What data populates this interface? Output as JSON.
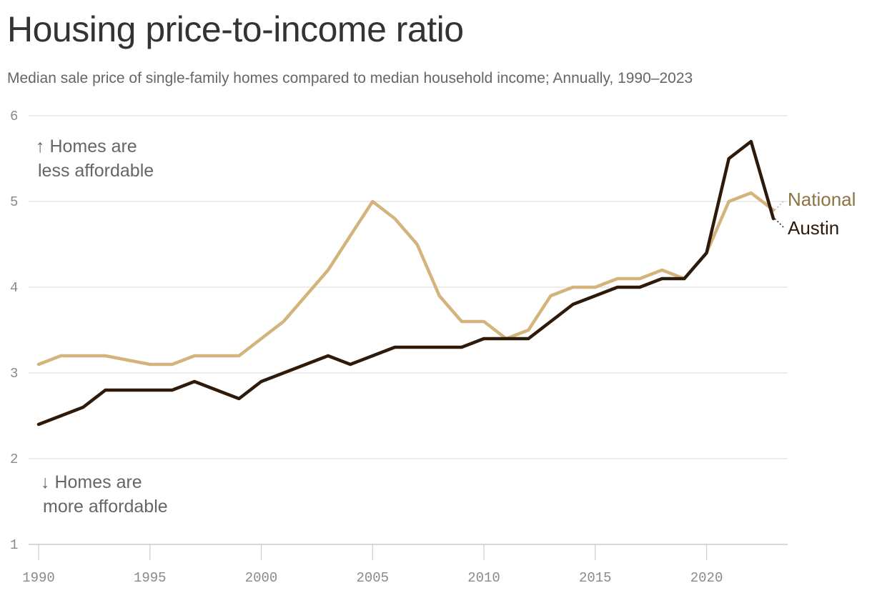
{
  "title": "Housing price-to-income ratio",
  "subtitle": "Median sale price of single-family homes compared to median household income; Annually, 1990–2023",
  "chart_data": {
    "type": "line",
    "x": [
      1990,
      1991,
      1992,
      1993,
      1994,
      1995,
      1996,
      1997,
      1998,
      1999,
      2000,
      2001,
      2002,
      2003,
      2004,
      2005,
      2006,
      2007,
      2008,
      2009,
      2010,
      2011,
      2012,
      2013,
      2014,
      2015,
      2016,
      2017,
      2018,
      2019,
      2020,
      2021,
      2022,
      2023
    ],
    "series": [
      {
        "name": "National",
        "color": "#d4b47c",
        "label_color": "#8c7444",
        "values": [
          3.1,
          3.2,
          3.2,
          3.2,
          3.15,
          3.1,
          3.1,
          3.2,
          3.2,
          3.2,
          3.4,
          3.6,
          3.9,
          4.2,
          4.6,
          5.0,
          4.8,
          4.5,
          3.9,
          3.6,
          3.6,
          3.4,
          3.5,
          3.9,
          4.0,
          4.0,
          4.1,
          4.1,
          4.2,
          4.1,
          4.4,
          5.0,
          5.1,
          4.9
        ]
      },
      {
        "name": "Austin",
        "color": "#2d1a0a",
        "label_color": "#2d1a0a",
        "values": [
          2.4,
          2.5,
          2.6,
          2.8,
          2.8,
          2.8,
          2.8,
          2.9,
          2.8,
          2.7,
          2.9,
          3.0,
          3.1,
          3.2,
          3.1,
          3.2,
          3.3,
          3.3,
          3.3,
          3.3,
          3.4,
          3.4,
          3.4,
          3.6,
          3.8,
          3.9,
          4.0,
          4.0,
          4.1,
          4.1,
          4.4,
          5.5,
          5.7,
          4.8
        ]
      }
    ],
    "xlim": [
      1990,
      2023
    ],
    "ylim": [
      1,
      6
    ],
    "yticks": [
      1,
      2,
      3,
      4,
      5,
      6
    ],
    "xticks": [
      1990,
      1995,
      2000,
      2005,
      2010,
      2015,
      2020
    ],
    "grid": "horizontal",
    "annotations": {
      "top_line1": "↑ Homes are",
      "top_line2": "less affordable",
      "bottom_line1": "↓ Homes are",
      "bottom_line2": "more affordable"
    },
    "colors": {
      "grid": "#e2e2e2",
      "axis": "#cccccc"
    }
  }
}
